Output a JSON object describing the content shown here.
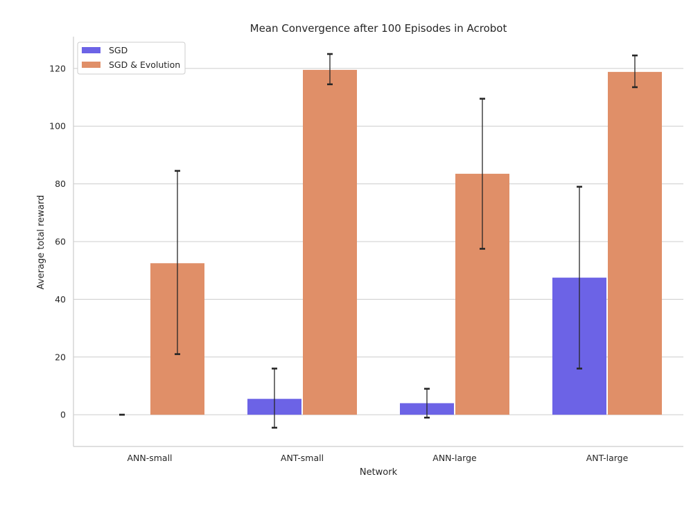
{
  "chart_data": {
    "type": "bar",
    "title": "Mean Convergence after 100 Episodes in Acrobot",
    "xlabel": "Network",
    "ylabel": "Average total reward",
    "categories": [
      "ANN-small",
      "ANT-small",
      "ANN-large",
      "ANT-large"
    ],
    "ylim": [
      -11,
      131
    ],
    "yticks": [
      0,
      20,
      40,
      60,
      80,
      100,
      120
    ],
    "grid": "horizontal",
    "legend_position": "top-left",
    "series": [
      {
        "name": "SGD",
        "color": "#6c63e6",
        "values": [
          0,
          5.5,
          4,
          47.5
        ],
        "err_low": [
          0,
          -4.5,
          -1,
          16
        ],
        "err_high": [
          0,
          16,
          9,
          79
        ]
      },
      {
        "name": "SGD & Evolution",
        "color": "#e08f68",
        "values": [
          52.5,
          119.5,
          83.5,
          118.8
        ],
        "err_low": [
          21,
          114.5,
          57.5,
          113.5
        ],
        "err_high": [
          84.5,
          125,
          109.5,
          124.5
        ]
      }
    ]
  }
}
